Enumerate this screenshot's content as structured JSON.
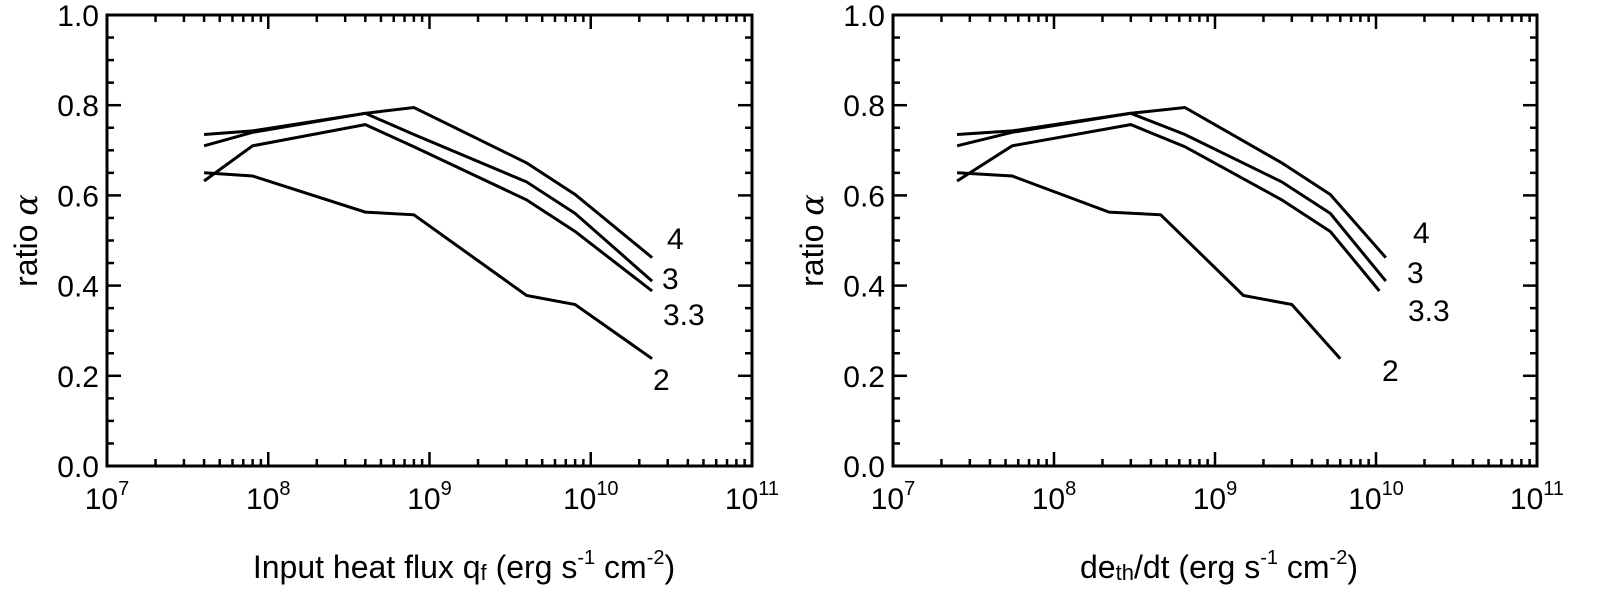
{
  "chart_data": [
    {
      "type": "line",
      "xscale": "log",
      "xlim": [
        10000000,
        100000000000
      ],
      "ylim": [
        0.0,
        1.0
      ],
      "xticks": [
        {
          "base": "10",
          "exp": "7"
        },
        {
          "base": "10",
          "exp": "8"
        },
        {
          "base": "10",
          "exp": "9"
        },
        {
          "base": "10",
          "exp": "10"
        },
        {
          "base": "10",
          "exp": "11"
        }
      ],
      "yticks": [
        "0.0",
        "0.2",
        "0.4",
        "0.6",
        "0.8",
        "1.0"
      ],
      "ylabel_text": "ratio",
      "ylabel_symbol": "α",
      "xlabel_parts": [
        "Input heat flux q",
        "f",
        " (erg s",
        "-1",
        " cm",
        "-2",
        ")"
      ],
      "series": [
        {
          "name": "4",
          "x": [
            40000000.0,
            80000000.0,
            400000000.0,
            800000000.0,
            4000000000.0,
            8000000000.0,
            24000000000.0
          ],
          "y": [
            0.735,
            0.743,
            0.782,
            0.795,
            0.672,
            0.602,
            0.462
          ]
        },
        {
          "name": "3",
          "x": [
            40000000.0,
            80000000.0,
            400000000.0,
            800000000.0,
            4000000000.0,
            8000000000.0,
            24000000000.0
          ],
          "y": [
            0.71,
            0.74,
            0.782,
            0.735,
            0.63,
            0.56,
            0.41
          ]
        },
        {
          "name": "3.3",
          "x": [
            40000000.0,
            80000000.0,
            400000000.0,
            800000000.0,
            4000000000.0,
            8000000000.0,
            24000000000.0
          ],
          "y": [
            0.632,
            0.71,
            0.757,
            0.708,
            0.59,
            0.52,
            0.388
          ]
        },
        {
          "name": "2",
          "x": [
            40000000.0,
            80000000.0,
            400000000.0,
            800000000.0,
            4000000000.0,
            8000000000.0,
            24000000000.0
          ],
          "y": [
            0.65,
            0.643,
            0.563,
            0.557,
            0.378,
            0.358,
            0.238
          ]
        }
      ]
    },
    {
      "type": "line",
      "xscale": "log",
      "xlim": [
        10000000,
        100000000000
      ],
      "ylim": [
        0.0,
        1.0
      ],
      "xticks": [
        {
          "base": "10",
          "exp": "7"
        },
        {
          "base": "10",
          "exp": "8"
        },
        {
          "base": "10",
          "exp": "9"
        },
        {
          "base": "10",
          "exp": "10"
        },
        {
          "base": "10",
          "exp": "11"
        }
      ],
      "yticks": [
        "0.0",
        "0.2",
        "0.4",
        "0.6",
        "0.8",
        "1.0"
      ],
      "ylabel_text": "ratio",
      "ylabel_symbol": "α",
      "xlabel_parts": [
        "de",
        "th",
        "/dt (erg s",
        "-1",
        " cm",
        "-2",
        ")"
      ],
      "series": [
        {
          "name": "4",
          "x": [
            25000000.0,
            55000000.0,
            300000000.0,
            650000000.0,
            2600000000.0,
            5200000000.0,
            11500000000.0
          ],
          "y": [
            0.735,
            0.743,
            0.782,
            0.795,
            0.672,
            0.602,
            0.462
          ]
        },
        {
          "name": "3",
          "x": [
            25000000.0,
            55000000.0,
            300000000.0,
            650000000.0,
            2600000000.0,
            5200000000.0,
            11500000000.0
          ],
          "y": [
            0.71,
            0.74,
            0.782,
            0.735,
            0.63,
            0.56,
            0.41
          ]
        },
        {
          "name": "3.3",
          "x": [
            25000000.0,
            55000000.0,
            300000000.0,
            650000000.0,
            2600000000.0,
            5200000000.0,
            10500000000.0
          ],
          "y": [
            0.632,
            0.71,
            0.757,
            0.708,
            0.59,
            0.52,
            0.388
          ]
        },
        {
          "name": "2",
          "x": [
            25000000.0,
            55000000.0,
            220000000.0,
            460000000.0,
            1500000000.0,
            3000000000.0,
            6000000000.0
          ],
          "y": [
            0.65,
            0.643,
            0.563,
            0.557,
            0.378,
            0.358,
            0.238
          ]
        }
      ]
    }
  ]
}
